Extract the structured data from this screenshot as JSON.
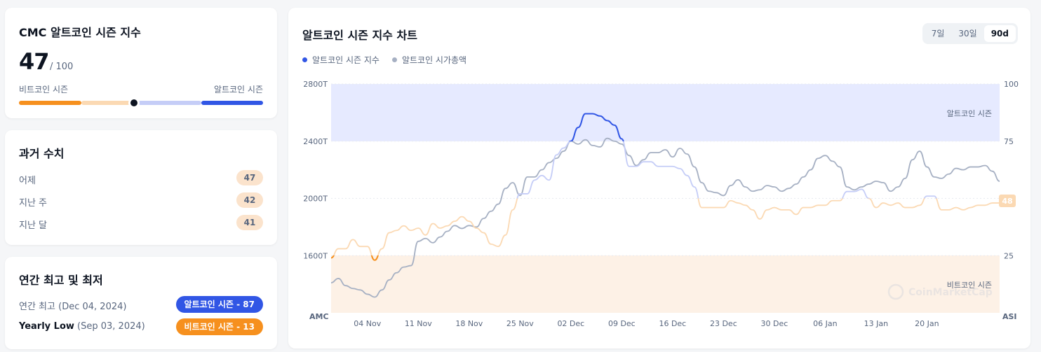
{
  "index_card": {
    "title": "CMC 알트코인 시즌 지수",
    "value": "47",
    "of": "/ 100",
    "left_label": "비트코인 시즌",
    "right_label": "알트코인 시즌",
    "level": 0.47
  },
  "history": {
    "title": "과거 수치",
    "rows": [
      {
        "label": "어제",
        "value": "47"
      },
      {
        "label": "지난 주",
        "value": "42"
      },
      {
        "label": "지난 달",
        "value": "41"
      }
    ]
  },
  "yearly": {
    "title": "연간 최고 및 최저",
    "high_label": "연간 최고",
    "high_date": "(Dec 04, 2024)",
    "high_badge": "알트코인 시즌 - 87",
    "low_label": "Yearly Low",
    "low_date": "(Sep 03, 2024)",
    "low_badge": "비트코인 시즌 - 13"
  },
  "chart_panel": {
    "title": "알트코인 시즌 지수 차트",
    "ranges": [
      "7일",
      "30일",
      "90d"
    ],
    "active_range": "90d",
    "legend": [
      {
        "name": "알트코인 시즌 지수",
        "color": "#3156e5"
      },
      {
        "name": "알트코인 시가총액",
        "color": "#a6b0c3"
      }
    ],
    "zone_top_label": "알트코인 시즌",
    "zone_bottom_label": "비트코인 시즌",
    "current_badge": "48",
    "left_axis_name": "AMC",
    "right_axis_name": "ASI",
    "watermark": "CoinMarketCap"
  },
  "colors": {
    "alt": "#3156e5",
    "btc": "#f6901e",
    "btc_light": "#fbd9b3",
    "alt_light": "#c5cdf7",
    "mcap": "#a6b0c3"
  },
  "chart_data": {
    "type": "line",
    "x_ticks": [
      "04 Nov",
      "11 Nov",
      "18 Nov",
      "25 Nov",
      "02 Dec",
      "09 Dec",
      "16 Dec",
      "23 Dec",
      "30 Dec",
      "06 Jan",
      "13 Jan",
      "20 Jan"
    ],
    "y_left_ticks": [
      "2800T",
      "2400T",
      "2000T",
      "1600T"
    ],
    "y_left_lim": [
      1200,
      2800
    ],
    "y_right_ticks": [
      "100",
      "75",
      "25"
    ],
    "y_right_lim": [
      0,
      100
    ],
    "zones": {
      "altcoin_season_min": 75,
      "bitcoin_season_max": 25
    },
    "series": [
      {
        "name": "알트코인 시즌 지수",
        "axis": "right",
        "x_day": [
          0,
          1,
          2,
          3,
          4,
          5,
          6,
          7,
          8,
          9,
          10,
          11,
          12,
          13,
          14,
          15,
          16,
          17,
          18,
          19,
          20,
          21,
          22,
          23,
          24,
          25,
          26,
          27,
          28,
          29,
          30,
          31,
          32,
          33,
          34,
          35,
          36,
          37,
          38,
          39,
          40,
          41,
          42,
          43,
          44,
          45,
          46,
          47,
          48,
          49,
          50,
          51,
          52,
          53,
          54,
          55,
          56,
          57,
          58,
          59,
          60,
          61,
          62,
          63,
          64,
          65,
          66,
          67,
          68,
          69,
          70,
          71,
          72,
          73,
          74,
          75,
          76,
          77,
          78,
          79,
          80,
          81,
          82,
          83,
          84,
          85,
          86,
          87,
          88,
          89,
          90,
          91,
          92
        ],
        "values": [
          24,
          28,
          28,
          32,
          29,
          29,
          23,
          28,
          35,
          36,
          38,
          36,
          37,
          34,
          39,
          37,
          38,
          40,
          42,
          40,
          37,
          35,
          30,
          29,
          34,
          45,
          52,
          52,
          58,
          60,
          58,
          69,
          72,
          75,
          81,
          87,
          87,
          86,
          84,
          82,
          76,
          64,
          64,
          66,
          66,
          64,
          64,
          64,
          63,
          60,
          55,
          46,
          46,
          46,
          46,
          49,
          48,
          47,
          45,
          41,
          45,
          46,
          45,
          45,
          43,
          46,
          46,
          47,
          47,
          49,
          49,
          53,
          53,
          54,
          50,
          46,
          48,
          47,
          48,
          46,
          46,
          47,
          51,
          51,
          45,
          45,
          46,
          45,
          46,
          47,
          47,
          48,
          48
        ]
      },
      {
        "name": "알트코인 시가총액",
        "axis": "left",
        "x_day": [
          0,
          1,
          2,
          3,
          4,
          5,
          6,
          7,
          8,
          9,
          10,
          11,
          12,
          13,
          14,
          15,
          16,
          17,
          18,
          19,
          20,
          21,
          22,
          23,
          24,
          25,
          26,
          27,
          28,
          29,
          30,
          31,
          32,
          33,
          34,
          35,
          36,
          37,
          38,
          39,
          40,
          41,
          42,
          43,
          44,
          45,
          46,
          47,
          48,
          49,
          50,
          51,
          52,
          53,
          54,
          55,
          56,
          57,
          58,
          59,
          60,
          61,
          62,
          63,
          64,
          65,
          66,
          67,
          68,
          69,
          70,
          71,
          72,
          73,
          74,
          75,
          76,
          77,
          78,
          79,
          80,
          81,
          82,
          83,
          84,
          85,
          86,
          87,
          88,
          89,
          90,
          91,
          92
        ],
        "values": [
          1410,
          1440,
          1390,
          1370,
          1360,
          1330,
          1310,
          1360,
          1430,
          1480,
          1520,
          1530,
          1700,
          1720,
          1690,
          1730,
          1770,
          1810,
          1790,
          1810,
          1800,
          1860,
          1910,
          1960,
          2070,
          2110,
          2020,
          2150,
          2150,
          2200,
          2250,
          2280,
          2330,
          2400,
          2380,
          2410,
          2370,
          2360,
          2420,
          2400,
          2380,
          2300,
          2230,
          2270,
          2320,
          2320,
          2340,
          2290,
          2350,
          2310,
          2220,
          2110,
          2050,
          2040,
          2020,
          2090,
          2130,
          2080,
          2050,
          2060,
          2090,
          2080,
          2050,
          2070,
          2100,
          2150,
          2200,
          2280,
          2300,
          2260,
          2220,
          2080,
          2060,
          2080,
          2100,
          2120,
          2110,
          2050,
          2080,
          2140,
          2270,
          2330,
          2220,
          2150,
          2140,
          2170,
          2210,
          2200,
          2220,
          2220,
          2230,
          2190,
          2120
        ]
      }
    ]
  }
}
